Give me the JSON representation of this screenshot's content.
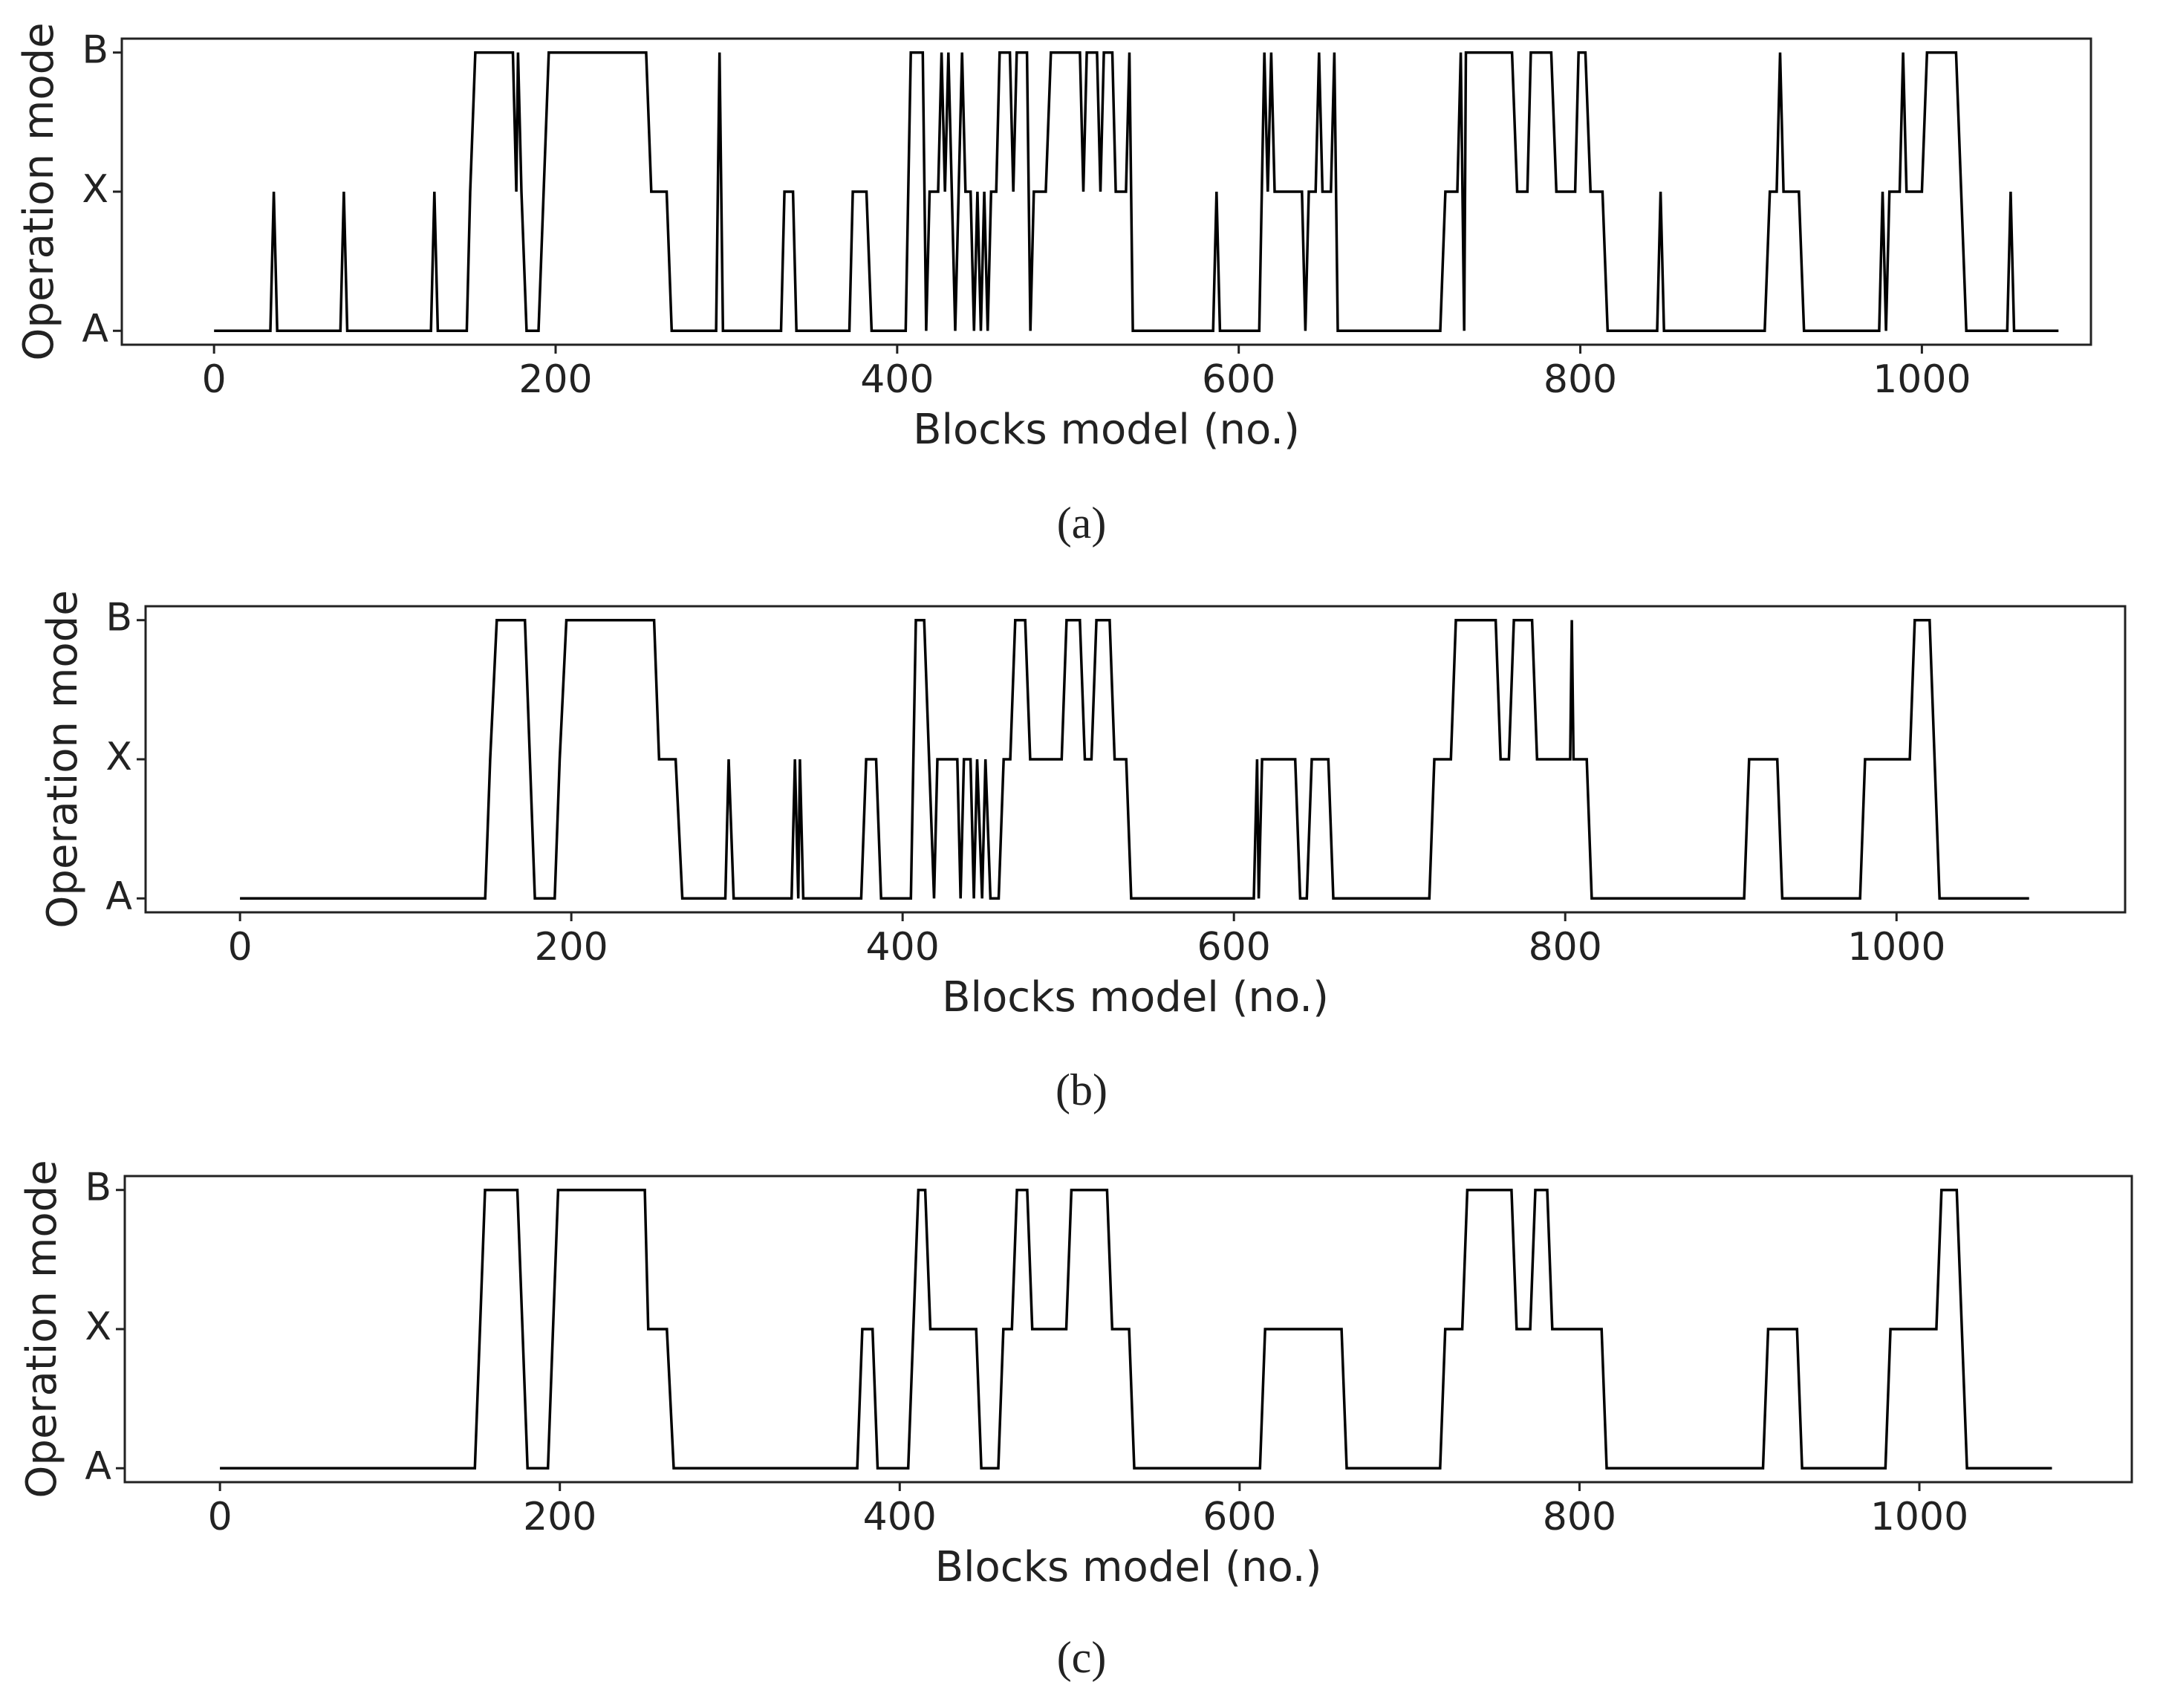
{
  "chart_data": [
    {
      "type": "line",
      "caption": "(a)",
      "x_label": "Blocks model (no.)",
      "y_label": "Operation mode",
      "xlim": [
        -54,
        1099
      ],
      "ylim": [
        -0.1,
        2.1
      ],
      "xticks": [
        0,
        200,
        400,
        600,
        800,
        1000
      ],
      "yticks": [
        {
          "value": 0,
          "label": "A"
        },
        {
          "value": 1,
          "label": "X"
        },
        {
          "value": 2,
          "label": "B"
        }
      ],
      "series": [
        {
          "color": "#000000",
          "x": [
            0,
            33,
            35,
            37,
            74,
            76,
            78,
            127,
            129,
            131,
            148,
            150,
            153,
            175,
            177,
            178,
            180,
            183,
            190,
            193,
            196,
            253,
            256,
            265,
            268,
            294,
            296,
            298,
            332,
            334,
            339,
            341,
            372,
            374,
            382,
            385,
            405,
            408,
            415,
            417,
            419,
            424,
            426,
            428,
            430,
            432,
            434,
            436,
            438,
            440,
            443,
            445,
            447,
            449,
            451,
            453,
            455,
            458,
            460,
            466,
            468,
            470,
            476,
            478,
            480,
            487,
            490,
            507,
            509,
            511,
            517,
            519,
            521,
            526,
            528,
            534,
            536,
            538,
            585,
            587,
            589,
            612,
            615,
            617,
            619,
            621,
            637,
            639,
            641,
            645,
            647,
            649,
            654,
            656,
            658,
            718,
            721,
            728,
            730,
            732,
            733,
            760,
            763,
            769,
            771,
            783,
            786,
            797,
            799,
            803,
            806,
            813,
            816,
            845,
            847,
            849,
            908,
            911,
            915,
            917,
            919,
            928,
            931,
            975,
            977,
            979,
            981,
            987,
            989,
            991,
            1000,
            1003,
            1020,
            1023,
            1026,
            1050,
            1052,
            1054,
            1080
          ],
          "values": [
            0,
            0,
            1,
            0,
            0,
            1,
            0,
            0,
            1,
            0,
            0,
            1,
            2,
            2,
            1,
            2,
            1,
            0,
            0,
            1,
            2,
            2,
            1,
            1,
            0,
            0,
            2,
            0,
            0,
            1,
            1,
            0,
            0,
            1,
            1,
            0,
            0,
            2,
            2,
            0,
            1,
            1,
            2,
            1,
            2,
            1,
            0,
            1,
            2,
            1,
            1,
            0,
            1,
            0,
            1,
            0,
            1,
            1,
            2,
            2,
            1,
            2,
            2,
            0,
            1,
            1,
            2,
            2,
            1,
            2,
            2,
            1,
            2,
            2,
            1,
            1,
            2,
            0,
            0,
            1,
            0,
            0,
            2,
            1,
            2,
            1,
            1,
            0,
            1,
            1,
            2,
            1,
            1,
            2,
            0,
            0,
            1,
            1,
            2,
            0,
            2,
            2,
            1,
            1,
            2,
            2,
            1,
            1,
            2,
            2,
            1,
            1,
            0,
            0,
            1,
            0,
            0,
            1,
            1,
            2,
            1,
            1,
            0,
            0,
            1,
            0,
            1,
            1,
            2,
            1,
            1,
            2,
            2,
            1,
            0,
            0,
            1,
            0,
            0
          ]
        }
      ]
    },
    {
      "type": "line",
      "caption": "(b)",
      "x_label": "Blocks model (no.)",
      "y_label": "Operation mode",
      "xlim": [
        -57,
        1138
      ],
      "ylim": [
        -0.1,
        2.1
      ],
      "xticks": [
        0,
        200,
        400,
        600,
        800,
        1000
      ],
      "yticks": [
        {
          "value": 0,
          "label": "A"
        },
        {
          "value": 1,
          "label": "X"
        },
        {
          "value": 2,
          "label": "B"
        }
      ],
      "series": [
        {
          "color": "#000000",
          "x": [
            0,
            148,
            151,
            155,
            172,
            175,
            178,
            190,
            193,
            197,
            250,
            253,
            263,
            267,
            293,
            295,
            298,
            333,
            335,
            337,
            338,
            340,
            375,
            378,
            384,
            387,
            405,
            408,
            413,
            416,
            419,
            421,
            433,
            435,
            437,
            441,
            443,
            445,
            448,
            450,
            453,
            458,
            461,
            465,
            468,
            474,
            477,
            496,
            499,
            507,
            510,
            514,
            517,
            525,
            528,
            535,
            538,
            612,
            614,
            615,
            617,
            637,
            640,
            644,
            647,
            657,
            660,
            718,
            721,
            731,
            734,
            758,
            761,
            766,
            769,
            780,
            783,
            803,
            804,
            805,
            813,
            816,
            908,
            911,
            928,
            931,
            978,
            981,
            1008,
            1011,
            1020,
            1023,
            1026,
            1080
          ],
          "values": [
            0,
            0,
            1,
            2,
            2,
            1,
            0,
            0,
            1,
            2,
            2,
            1,
            1,
            0,
            0,
            1,
            0,
            0,
            1,
            0,
            1,
            0,
            0,
            1,
            1,
            0,
            0,
            2,
            2,
            1,
            0,
            1,
            1,
            0,
            1,
            1,
            0,
            1,
            0,
            1,
            0,
            0,
            1,
            1,
            2,
            2,
            1,
            1,
            2,
            2,
            1,
            1,
            2,
            2,
            1,
            1,
            0,
            0,
            1,
            0,
            1,
            1,
            0,
            0,
            1,
            1,
            0,
            0,
            1,
            1,
            2,
            2,
            1,
            1,
            2,
            2,
            1,
            1,
            2,
            1,
            1,
            0,
            0,
            1,
            1,
            0,
            0,
            1,
            1,
            2,
            2,
            1,
            0,
            0
          ]
        }
      ]
    },
    {
      "type": "line",
      "caption": "(c)",
      "x_label": "Blocks model (no.)",
      "y_label": "Operation mode",
      "xlim": [
        -56,
        1125
      ],
      "ylim": [
        -0.1,
        2.1
      ],
      "xticks": [
        0,
        200,
        400,
        600,
        800,
        1000
      ],
      "yticks": [
        {
          "value": 0,
          "label": "A"
        },
        {
          "value": 1,
          "label": "X"
        },
        {
          "value": 2,
          "label": "B"
        }
      ],
      "series": [
        {
          "color": "#000000",
          "x": [
            0,
            150,
            153,
            156,
            175,
            178,
            181,
            193,
            196,
            199,
            250,
            252,
            263,
            267,
            375,
            378,
            384,
            387,
            405,
            408,
            411,
            415,
            418,
            445,
            448,
            458,
            461,
            466,
            469,
            475,
            478,
            498,
            501,
            522,
            525,
            535,
            538,
            612,
            615,
            660,
            663,
            718,
            721,
            731,
            734,
            760,
            763,
            771,
            774,
            781,
            784,
            813,
            816,
            908,
            911,
            928,
            931,
            980,
            983,
            1010,
            1013,
            1022,
            1025,
            1028,
            1078
          ],
          "values": [
            0,
            0,
            1,
            2,
            2,
            1,
            0,
            0,
            1,
            2,
            2,
            1,
            1,
            0,
            0,
            1,
            1,
            0,
            0,
            1,
            2,
            2,
            1,
            1,
            0,
            0,
            1,
            1,
            2,
            2,
            1,
            1,
            2,
            2,
            1,
            1,
            0,
            0,
            1,
            1,
            0,
            0,
            1,
            1,
            2,
            2,
            1,
            1,
            2,
            2,
            1,
            1,
            0,
            0,
            1,
            1,
            0,
            0,
            1,
            1,
            2,
            2,
            1,
            0,
            0
          ]
        }
      ]
    }
  ]
}
